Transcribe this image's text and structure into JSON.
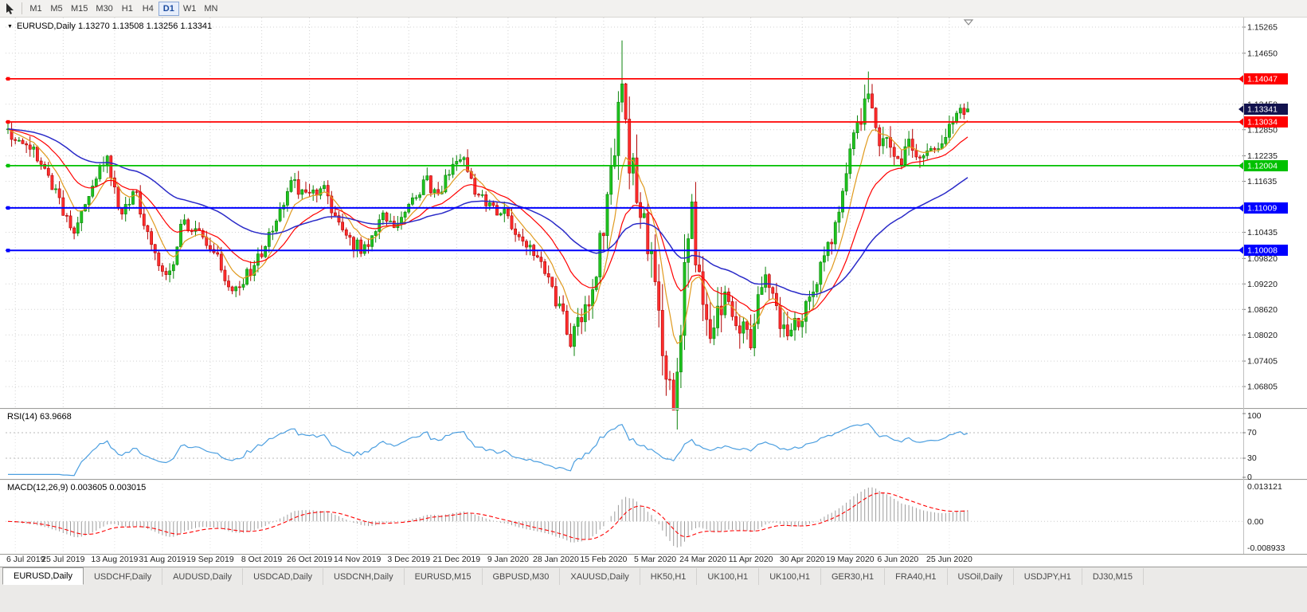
{
  "icons": {
    "dropdown": "▼"
  },
  "toolbar": {
    "timeframes": [
      "M1",
      "M5",
      "M15",
      "M30",
      "H1",
      "H4",
      "D1",
      "W1",
      "MN"
    ],
    "active_timeframe": "D1"
  },
  "chart": {
    "title": "EURUSD,Daily 1.13270 1.13508 1.13256 1.13341",
    "symbol": "EURUSD",
    "period": "Daily"
  },
  "chart_data": {
    "type": "candlestick",
    "title": "EURUSD,Daily",
    "x_labels": [
      "6 Jul 2019",
      "25 Jul 2019",
      "13 Aug 2019",
      "31 Aug 2019",
      "19 Sep 2019",
      "8 Oct 2019",
      "26 Oct 2019",
      "14 Nov 2019",
      "3 Dec 2019",
      "21 Dec 2019",
      "9 Jan 2020",
      "28 Jan 2020",
      "15 Feb 2020",
      "5 Mar 2020",
      "24 Mar 2020",
      "11 Apr 2020",
      "30 Apr 2020",
      "19 May 2020",
      "6 Jun 2020",
      "25 Jun 2020"
    ],
    "y_axis_labels": [
      "1.15265",
      "1.14650",
      "1.14050",
      "1.13450",
      "1.12850",
      "1.12235",
      "1.11635",
      "1.11035",
      "1.10435",
      "1.09820",
      "1.09220",
      "1.08620",
      "1.08020",
      "1.07405",
      "1.06805"
    ],
    "price_range": {
      "top": 1.1549,
      "bottom": 1.063
    },
    "bars_total": 262,
    "last_ohlc": {
      "open": 1.1327,
      "high": 1.13508,
      "low": 1.13256,
      "close": 1.13341
    },
    "path_anchors": [
      [
        0,
        1.1285
      ],
      [
        4,
        1.1262
      ],
      [
        9,
        1.1218
      ],
      [
        14,
        1.1128
      ],
      [
        18,
        1.1042
      ],
      [
        21,
        1.1088
      ],
      [
        25,
        1.118
      ],
      [
        27,
        1.1228
      ],
      [
        31,
        1.1092
      ],
      [
        35,
        1.114
      ],
      [
        40,
        1.1002
      ],
      [
        44,
        1.0932
      ],
      [
        48,
        1.1068
      ],
      [
        52,
        1.1042
      ],
      [
        57,
        1.0986
      ],
      [
        62,
        1.0896
      ],
      [
        66,
        1.0952
      ],
      [
        70,
        1.1002
      ],
      [
        74,
        1.1082
      ],
      [
        78,
        1.1162
      ],
      [
        82,
        1.1122
      ],
      [
        86,
        1.1152
      ],
      [
        90,
        1.1062
      ],
      [
        94,
        1.1012
      ],
      [
        98,
        1.1006
      ],
      [
        102,
        1.1082
      ],
      [
        106,
        1.1062
      ],
      [
        110,
        1.1112
      ],
      [
        114,
        1.1172
      ],
      [
        117,
        1.1122
      ],
      [
        121,
        1.1202
      ],
      [
        123,
        1.1232
      ],
      [
        127,
        1.1152
      ],
      [
        131,
        1.1112
      ],
      [
        135,
        1.1092
      ],
      [
        139,
        1.1032
      ],
      [
        143,
        1.0992
      ],
      [
        147,
        1.0936
      ],
      [
        151,
        1.0852
      ],
      [
        153,
        1.0786
      ],
      [
        156,
        1.0832
      ],
      [
        159,
        1.0902
      ],
      [
        161,
        1.0992
      ],
      [
        163,
        1.1082
      ],
      [
        165,
        1.1202
      ],
      [
        166,
        1.1322
      ],
      [
        167,
        1.1438
      ],
      [
        168,
        1.1312
      ],
      [
        170,
        1.1192
      ],
      [
        172,
        1.1122
      ],
      [
        174,
        1.1062
      ],
      [
        176,
        1.0942
      ],
      [
        178,
        1.0822
      ],
      [
        180,
        1.0702
      ],
      [
        181,
        1.0648
      ],
      [
        183,
        1.0762
      ],
      [
        185,
        1.0992
      ],
      [
        186,
        1.1098
      ],
      [
        188,
        1.0972
      ],
      [
        190,
        1.0862
      ],
      [
        192,
        1.0802
      ],
      [
        194,
        1.0872
      ],
      [
        196,
        1.0916
      ],
      [
        198,
        1.0856
      ],
      [
        200,
        1.0816
      ],
      [
        202,
        1.0772
      ],
      [
        204,
        1.0866
      ],
      [
        206,
        1.0946
      ],
      [
        208,
        1.0896
      ],
      [
        210,
        1.0826
      ],
      [
        212,
        1.0796
      ],
      [
        214,
        1.0852
      ],
      [
        216,
        1.0816
      ],
      [
        218,
        1.0882
      ],
      [
        220,
        1.0926
      ],
      [
        222,
        1.0976
      ],
      [
        224,
        1.1006
      ],
      [
        226,
        1.1096
      ],
      [
        228,
        1.1166
      ],
      [
        230,
        1.1246
      ],
      [
        232,
        1.1296
      ],
      [
        234,
        1.1372
      ],
      [
        236,
        1.1306
      ],
      [
        238,
        1.1242
      ],
      [
        240,
        1.1266
      ],
      [
        242,
        1.1212
      ],
      [
        244,
        1.1226
      ],
      [
        246,
        1.1256
      ],
      [
        248,
        1.1192
      ],
      [
        250,
        1.1232
      ],
      [
        252,
        1.1256
      ],
      [
        254,
        1.1242
      ],
      [
        256,
        1.1292
      ],
      [
        258,
        1.1312
      ],
      [
        261,
        1.1334
      ]
    ],
    "volatility_anchors": [
      [
        0,
        0.004
      ],
      [
        145,
        0.0042
      ],
      [
        155,
        0.006
      ],
      [
        163,
        0.0085
      ],
      [
        167,
        0.013
      ],
      [
        172,
        0.0105
      ],
      [
        178,
        0.013
      ],
      [
        183,
        0.014
      ],
      [
        188,
        0.011
      ],
      [
        196,
        0.0085
      ],
      [
        206,
        0.0075
      ],
      [
        216,
        0.006
      ],
      [
        226,
        0.0058
      ],
      [
        234,
        0.0068
      ],
      [
        244,
        0.005
      ],
      [
        261,
        0.0045
      ]
    ],
    "forced_extremes": [
      {
        "bar": 167,
        "high": 1.1495
      },
      {
        "bar": 181,
        "low": 1.0636
      },
      {
        "bar": 234,
        "high": 1.1422
      }
    ],
    "horizontal_lines": [
      {
        "price": 1.14047,
        "label": "1.14047",
        "color": "#FF0000",
        "width": 1.7
      },
      {
        "price": 1.13034,
        "label": "1.13034",
        "color": "#FF0000",
        "width": 1.7
      },
      {
        "price": 1.12004,
        "label": "1.12004",
        "color": "#00C100",
        "width": 1.7
      },
      {
        "price": 1.11009,
        "label": "1.11009",
        "color": "#0000FF",
        "width": 2
      },
      {
        "price": 1.10008,
        "label": "1.10008",
        "color": "#0000FF",
        "width": 2
      }
    ],
    "current_price": {
      "value": 1.13341,
      "label": "1.13341",
      "color": "#12124e"
    },
    "moving_averages": [
      {
        "name": "ema-fast",
        "period": 8,
        "color": "#E09A1E",
        "width": 1.2
      },
      {
        "name": "ema-mid",
        "period": 21,
        "color": "#FF0000",
        "width": 1.2
      },
      {
        "name": "ema-slow",
        "period": 55,
        "color": "#2A2AC8",
        "width": 1.5
      }
    ],
    "colors": {
      "candle_up_fill": "#1FC31F",
      "candle_up_stroke": "#0B830B",
      "candle_down_fill": "#FF2E2E",
      "candle_down_stroke": "#B00000",
      "grid": "#d2d2d2",
      "axis_text": "#1a1a1a"
    },
    "rsi": {
      "label": "RSI(14) 63.9668",
      "period": 14,
      "value": "63.9668",
      "levels": [
        "100",
        "70",
        "30",
        "0"
      ],
      "dashed_levels": [
        70,
        30
      ],
      "line_color": "#4C9FE0"
    },
    "macd": {
      "label": "MACD(12,26,9) 0.003605 0.003015",
      "params": "12,26,9",
      "value": "0.003605",
      "signal_value": "0.003015",
      "axis": [
        "0.013121",
        "0.00",
        "-0.008933"
      ],
      "histogram_color": "#9C9C9C",
      "signal_color": "#FF0000"
    }
  },
  "tabs": {
    "active_index": 0,
    "items": [
      "EURUSD,Daily",
      "USDCHF,Daily",
      "AUDUSD,Daily",
      "USDCAD,Daily",
      "USDCNH,Daily",
      "EURUSD,M15",
      "GBPUSD,M30",
      "XAUUSD,Daily",
      "HK50,H1",
      "UK100,H1",
      "UK100,H1",
      "GER30,H1",
      "FRA40,H1",
      "USOil,Daily",
      "USDJPY,H1",
      "DJ30,M15"
    ]
  }
}
